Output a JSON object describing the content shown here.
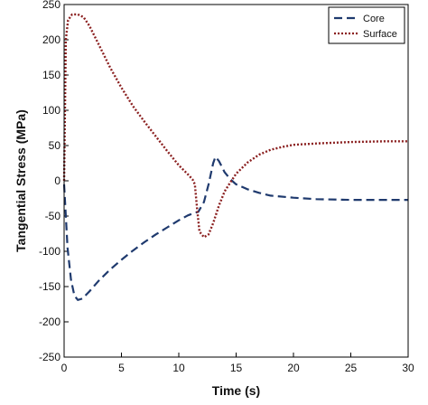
{
  "chart_data": {
    "type": "line",
    "xlabel": "Time (s)",
    "ylabel": "Tangential Stress (MPa)",
    "xlim": [
      0,
      30
    ],
    "ylim": [
      -250,
      250
    ],
    "xticks": [
      0,
      5,
      10,
      15,
      20,
      25,
      30
    ],
    "yticks": [
      250,
      200,
      150,
      100,
      50,
      0,
      -50,
      -100,
      -150,
      -200,
      -250
    ],
    "grid": false,
    "legend_position": "top-right",
    "series": [
      {
        "name": "Core",
        "color": "#1f3a6e",
        "style": "dashed",
        "points": [
          [
            0,
            -5
          ],
          [
            0.3,
            -95
          ],
          [
            0.6,
            -140
          ],
          [
            0.9,
            -163
          ],
          [
            1.2,
            -169
          ],
          [
            1.6,
            -167
          ],
          [
            2.2,
            -157
          ],
          [
            3,
            -142
          ],
          [
            4,
            -126
          ],
          [
            5,
            -112
          ],
          [
            6,
            -99
          ],
          [
            7,
            -87
          ],
          [
            8,
            -76
          ],
          [
            9,
            -66
          ],
          [
            10,
            -56
          ],
          [
            10.8,
            -49
          ],
          [
            11.3,
            -46
          ],
          [
            11.7,
            -44
          ],
          [
            12.2,
            -30
          ],
          [
            12.6,
            -5
          ],
          [
            13,
            25
          ],
          [
            13.2,
            34
          ],
          [
            13.5,
            28
          ],
          [
            14,
            12
          ],
          [
            14.5,
            2
          ],
          [
            15,
            -5
          ],
          [
            16,
            -12
          ],
          [
            17,
            -17
          ],
          [
            18,
            -21
          ],
          [
            20,
            -24
          ],
          [
            22,
            -26
          ],
          [
            25,
            -27
          ],
          [
            28,
            -27
          ],
          [
            30,
            -27
          ]
        ]
      },
      {
        "name": "Surface",
        "color": "#8b2020",
        "style": "dotted",
        "points": [
          [
            0,
            0
          ],
          [
            0.15,
            200
          ],
          [
            0.35,
            228
          ],
          [
            0.7,
            236
          ],
          [
            1.2,
            236
          ],
          [
            1.7,
            232
          ],
          [
            2.2,
            220
          ],
          [
            3,
            194
          ],
          [
            4,
            161
          ],
          [
            5,
            132
          ],
          [
            6,
            106
          ],
          [
            7,
            84
          ],
          [
            8,
            63
          ],
          [
            9,
            42
          ],
          [
            10,
            22
          ],
          [
            10.8,
            9
          ],
          [
            11.2,
            2
          ],
          [
            11.4,
            -5
          ],
          [
            11.6,
            -40
          ],
          [
            11.8,
            -72
          ],
          [
            12.2,
            -80
          ],
          [
            12.6,
            -76
          ],
          [
            13,
            -60
          ],
          [
            13.5,
            -35
          ],
          [
            14,
            -15
          ],
          [
            14.5,
            -2
          ],
          [
            15,
            10
          ],
          [
            16,
            26
          ],
          [
            17,
            37
          ],
          [
            18,
            44
          ],
          [
            19,
            48
          ],
          [
            20,
            51
          ],
          [
            22,
            53
          ],
          [
            25,
            55
          ],
          [
            28,
            56
          ],
          [
            30,
            56
          ]
        ]
      }
    ]
  }
}
